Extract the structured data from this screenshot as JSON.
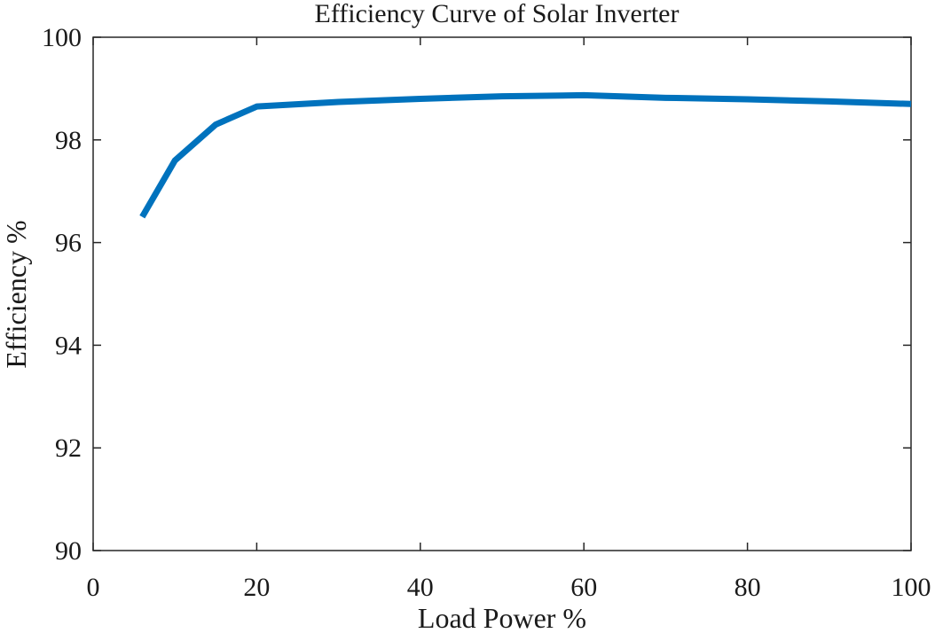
{
  "chart_data": {
    "type": "line",
    "title": "Efficiency Curve of Solar Inverter",
    "xlabel": "Load Power %",
    "ylabel": "Efficiency %",
    "xlim": [
      0,
      100
    ],
    "ylim": [
      90,
      100
    ],
    "xticks": [
      0,
      20,
      40,
      60,
      80,
      100
    ],
    "yticks": [
      90,
      92,
      94,
      96,
      98,
      100
    ],
    "grid": false,
    "series": [
      {
        "name": "Efficiency",
        "color": "#0072bd",
        "x": [
          6,
          10,
          15,
          20,
          30,
          40,
          50,
          60,
          70,
          80,
          90,
          100
        ],
        "y": [
          96.5,
          97.6,
          98.3,
          98.65,
          98.74,
          98.8,
          98.85,
          98.87,
          98.82,
          98.79,
          98.75,
          98.7
        ]
      }
    ]
  }
}
